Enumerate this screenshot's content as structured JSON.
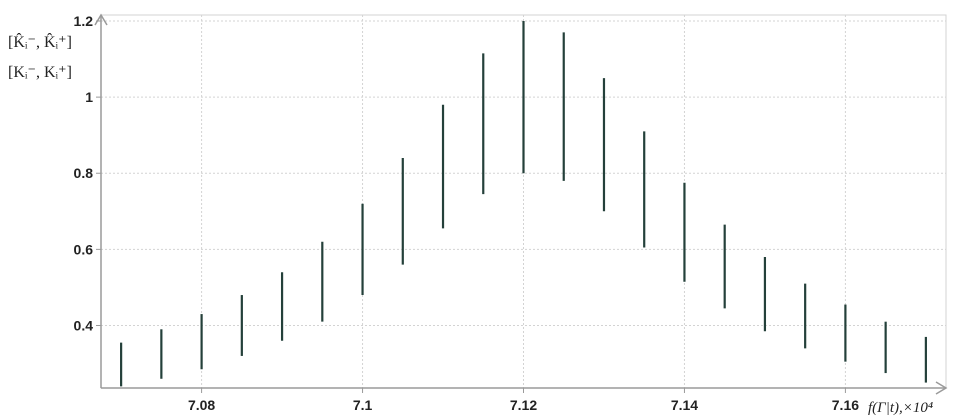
{
  "chart_data": {
    "type": "interval",
    "y_axis_label_lines": [
      "[K̂ᵢ⁻, K̂ᵢ⁺]",
      "[Kᵢ⁻, Kᵢ⁺]"
    ],
    "xlabel": "f(Γ|t),×10⁴",
    "xlim": [
      7.0675,
      7.1725
    ],
    "ylim": [
      0.22,
      1.2
    ],
    "x_ticks": [
      7.08,
      7.1,
      7.12,
      7.14,
      7.16
    ],
    "x_tick_labels": [
      "7.08",
      "7.1",
      "7.12",
      "7.14",
      "7.16"
    ],
    "y_ticks": [
      0.4,
      0.6,
      0.8,
      1,
      1.2
    ],
    "y_tick_labels": [
      "0.4",
      "0.6",
      "0.8",
      "1",
      "1.2"
    ],
    "grid": true,
    "intervals": [
      {
        "x": 7.07,
        "low": 0.24,
        "high": 0.355
      },
      {
        "x": 7.075,
        "low": 0.26,
        "high": 0.39
      },
      {
        "x": 7.08,
        "low": 0.285,
        "high": 0.43
      },
      {
        "x": 7.085,
        "low": 0.32,
        "high": 0.48
      },
      {
        "x": 7.09,
        "low": 0.36,
        "high": 0.54
      },
      {
        "x": 7.095,
        "low": 0.41,
        "high": 0.62
      },
      {
        "x": 7.1,
        "low": 0.48,
        "high": 0.72
      },
      {
        "x": 7.105,
        "low": 0.56,
        "high": 0.84
      },
      {
        "x": 7.11,
        "low": 0.655,
        "high": 0.98
      },
      {
        "x": 7.115,
        "low": 0.745,
        "high": 1.115
      },
      {
        "x": 7.12,
        "low": 0.8,
        "high": 1.2
      },
      {
        "x": 7.125,
        "low": 0.78,
        "high": 1.17
      },
      {
        "x": 7.13,
        "low": 0.7,
        "high": 1.05
      },
      {
        "x": 7.135,
        "low": 0.605,
        "high": 0.91
      },
      {
        "x": 7.14,
        "low": 0.515,
        "high": 0.775
      },
      {
        "x": 7.145,
        "low": 0.445,
        "high": 0.665
      },
      {
        "x": 7.15,
        "low": 0.385,
        "high": 0.58
      },
      {
        "x": 7.155,
        "low": 0.34,
        "high": 0.51
      },
      {
        "x": 7.16,
        "low": 0.305,
        "high": 0.455
      },
      {
        "x": 7.165,
        "low": 0.275,
        "high": 0.41
      },
      {
        "x": 7.17,
        "low": 0.25,
        "high": 0.37
      }
    ],
    "colors": {
      "interval": "#24403a",
      "axis": "#9a9a9a",
      "grid": "#d3d3d3",
      "text": "#222222"
    }
  }
}
